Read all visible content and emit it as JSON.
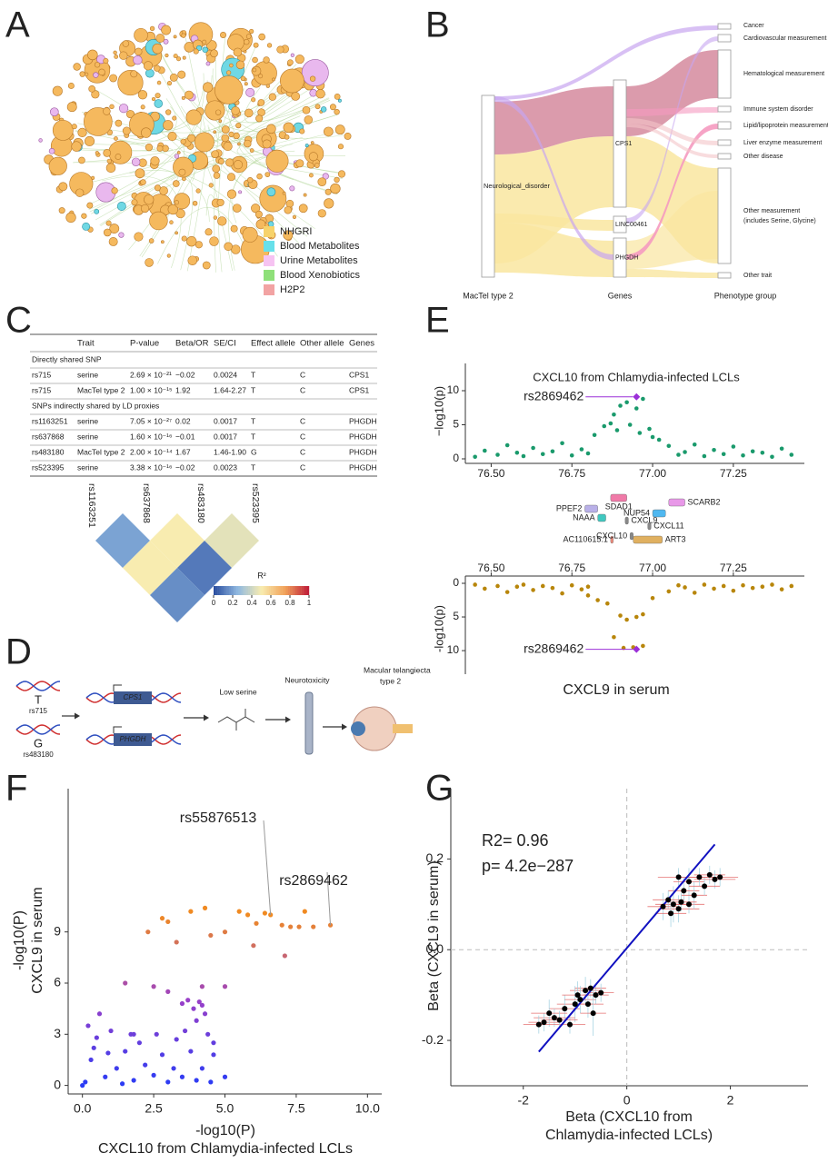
{
  "panel_labels": [
    "A",
    "B",
    "C",
    "D",
    "E",
    "F",
    "G"
  ],
  "network": {
    "legend": [
      {
        "name": "NHGRI",
        "color": "#f7d36b"
      },
      {
        "name": "Blood Metabolites",
        "color": "#67e0ea"
      },
      {
        "name": "Urine Metabolites",
        "color": "#f6c3f2"
      },
      {
        "name": "Blood Xenobiotics",
        "color": "#8fe07a"
      },
      {
        "name": "H2P2",
        "color": "#f2a3a3"
      }
    ]
  },
  "sankey": {
    "left_nodes": [
      "Neurological_disorder"
    ],
    "gene_nodes": [
      "CPS1",
      "LINC00461",
      "PHGDH"
    ],
    "phenotype_nodes": [
      "Cancer",
      "Cardiovascular measurement",
      "Hematological measurement",
      "Immune system disorder",
      "Lipid/lipoprotein measurement",
      "Liver enzyme measurement",
      "Other disease",
      "Other measurement",
      "(includes Serine, Glycine)",
      "Other trait"
    ],
    "axis_labels": [
      "MacTel type 2",
      "Genes",
      "Phenotype group"
    ]
  },
  "table": {
    "header": [
      "Trait",
      "P-value",
      "Beta/OR",
      "SE/CI",
      "Effect allele",
      "Other allele",
      "Genes"
    ],
    "sections": [
      {
        "title": "Directly shared SNP",
        "rows": [
          [
            "rs715",
            "serine",
            "2.69 × 10⁻²¹",
            "−0.02",
            "0.0024",
            "T",
            "C",
            "CPS1"
          ],
          [
            "rs715",
            "MacTel type 2",
            "1.00 × 10⁻¹⁵",
            "1.92",
            "1.64-2.27",
            "T",
            "C",
            "CPS1"
          ]
        ]
      },
      {
        "title": "SNPs indirectly shared by LD proxies",
        "rows": [
          [
            "rs1163251",
            "serine",
            "7.05 × 10⁻²⁷",
            "0.02",
            "0.0017",
            "T",
            "C",
            "PHGDH"
          ],
          [
            "rs637868",
            "serine",
            "1.60 × 10⁻¹⁶",
            "−0.01",
            "0.0017",
            "T",
            "C",
            "PHGDH"
          ],
          [
            "rs483180",
            "MacTel type 2",
            "2.00 × 10⁻¹⁴",
            "1.67",
            "1.46-1.90",
            "G",
            "C",
            "PHGDH"
          ],
          [
            "rs523395",
            "serine",
            "3.38 × 10⁻¹⁶",
            "−0.02",
            "0.0023",
            "T",
            "C",
            "PHGDH"
          ]
        ]
      }
    ]
  },
  "ld": {
    "type": "heatmap",
    "snps": [
      "rs1163251",
      "rs637868",
      "rs483180",
      "rs523395"
    ],
    "r2": [
      [
        0.2,
        0.5,
        0.45
      ],
      [
        0.5,
        0.1
      ],
      [
        0.15
      ]
    ],
    "legend_title": "R²",
    "ticks": [
      0,
      0.2,
      0.4,
      0.6,
      0.8,
      1
    ],
    "colors": [
      "#2c4fa0",
      "#8fb8e0",
      "#f8ecb0",
      "#f1a35a",
      "#c0203a"
    ]
  },
  "pathway": {
    "alleles": [
      {
        "allele": "T",
        "snp": "rs715"
      },
      {
        "allele": "G",
        "snp": "rs483180"
      }
    ],
    "genes": [
      "CPS1",
      "PHGDH"
    ],
    "steps": [
      "Low serine",
      "Neurotoxicity",
      "Macular telangiecta",
      "type 2"
    ]
  },
  "locus": {
    "type": "scatter",
    "xlim": [
      76.42,
      77.47
    ],
    "xticks": [
      {
        "value": 76.5,
        "label": "76.50"
      },
      {
        "value": 76.75,
        "label": "76.75"
      },
      {
        "value": 77,
        "label": "77.00"
      },
      {
        "value": 77.25,
        "label": "77.25"
      }
    ],
    "plots": [
      {
        "title": "CXCL10 from Chlamydia-infected LCLs",
        "ylabel": "−log10(p)",
        "color": "#1a9a6c",
        "ylim": [
          0,
          14
        ],
        "yticks": [
          0,
          5,
          10
        ],
        "x": [
          76.45,
          76.48,
          76.52,
          76.55,
          76.58,
          76.6,
          76.63,
          76.66,
          76.69,
          76.72,
          76.75,
          76.78,
          76.8,
          77.05,
          77.08,
          77.1,
          77.13,
          77.16,
          77.19,
          77.22,
          77.25,
          77.28,
          77.31,
          77.34,
          77.37,
          77.4,
          77.43,
          76.82,
          76.85,
          76.87,
          76.88,
          76.9,
          76.92,
          76.95,
          76.97,
          76.99,
          77.0,
          77.02,
          76.93,
          76.96,
          76.89
        ],
        "y": [
          0.3,
          1.2,
          0.6,
          2.0,
          0.9,
          0.4,
          1.6,
          0.7,
          1.1,
          2.3,
          0.5,
          1.4,
          0.8,
          1.9,
          0.6,
          1.0,
          2.1,
          0.4,
          1.3,
          0.7,
          1.8,
          0.5,
          1.1,
          0.9,
          0.3,
          1.5,
          0.6,
          3.5,
          4.8,
          5.2,
          6.5,
          7.8,
          8.3,
          7.4,
          8.8,
          4.4,
          3.2,
          2.8,
          5.0,
          3.8,
          4.2
        ],
        "lead": {
          "label": "rs2869462",
          "x": 76.95,
          "y": 9.1
        }
      },
      {
        "title": "CXCL9 in serum",
        "ylabel": "-log10(p)",
        "color": "#b8860b",
        "ylim": [
          0,
          13.5
        ],
        "yticks": [
          0,
          5,
          10
        ],
        "x": [
          76.45,
          76.48,
          76.52,
          76.55,
          76.58,
          76.6,
          76.63,
          76.66,
          76.69,
          76.72,
          76.75,
          76.78,
          76.8,
          77.05,
          77.08,
          77.1,
          77.13,
          77.16,
          77.19,
          77.22,
          77.25,
          77.28,
          77.31,
          77.34,
          77.37,
          77.4,
          77.43,
          76.83,
          76.86,
          76.9,
          76.92,
          76.95,
          76.97,
          76.88,
          76.91,
          76.94,
          76.97,
          77.0,
          76.8
        ],
        "y": [
          0.2,
          0.8,
          0.4,
          1.3,
          0.5,
          0.2,
          1.0,
          0.4,
          0.7,
          1.5,
          0.3,
          0.9,
          0.5,
          1.2,
          0.3,
          0.6,
          1.4,
          0.2,
          0.8,
          0.4,
          1.1,
          0.3,
          0.7,
          0.5,
          0.2,
          0.9,
          0.4,
          2.5,
          3.0,
          4.8,
          5.4,
          5.0,
          4.6,
          8.0,
          9.6,
          9.5,
          9.3,
          2.2,
          1.8
        ],
        "lead": {
          "label": "rs2869462",
          "x": 76.95,
          "y": 9.8
        }
      }
    ],
    "genes": [
      {
        "label": "PPEF2",
        "start": 76.79,
        "end": 76.83,
        "color": "#b9b0e8"
      },
      {
        "label": "SDAD1",
        "start": 76.87,
        "end": 76.92,
        "color": "#f07aa8"
      },
      {
        "label": "NAAA",
        "start": 76.83,
        "end": 76.855,
        "color": "#40c8c0"
      },
      {
        "label": "CXCL9",
        "start": 76.915,
        "end": 76.925,
        "color": "#888888"
      },
      {
        "label": "NUP54",
        "start": 77.0,
        "end": 77.04,
        "color": "#50b8f0"
      },
      {
        "label": "SCARB2",
        "start": 77.05,
        "end": 77.1,
        "color": "#e898e8"
      },
      {
        "label": "CXCL11",
        "start": 76.985,
        "end": 76.995,
        "color": "#888888"
      },
      {
        "label": "AC110615.1",
        "start": 76.87,
        "end": 76.878,
        "color": "#f08a7a"
      },
      {
        "label": "CXCL10",
        "start": 76.93,
        "end": 76.94,
        "color": "#888888"
      },
      {
        "label": "ART3",
        "start": 76.94,
        "end": 77.03,
        "color": "#e0b060"
      }
    ]
  },
  "scatter": {
    "type": "scatter",
    "xlabel": [
      "-log10(P)",
      "CXCL10 from Chlamydia-infected LCLs"
    ],
    "ylabel": [
      "-log10(P)",
      "CXCL9 in serum"
    ],
    "xlim": [
      -0.5,
      10.5
    ],
    "ylim": [
      -0.5,
      17.4
    ],
    "xticks": [
      {
        "value": 0,
        "label": "0.0"
      },
      {
        "value": 2.5,
        "label": "2.5"
      },
      {
        "value": 5,
        "label": "5.0"
      },
      {
        "value": 7.5,
        "label": "7.5"
      },
      {
        "value": 10,
        "label": "10.0"
      }
    ],
    "yticks": [
      0,
      3,
      6,
      9
    ],
    "colors": [
      "#2a3cf5",
      "#9a40c8",
      "#f08a22"
    ],
    "x": [
      0.1,
      0.3,
      0.5,
      0.8,
      1.0,
      1.2,
      1.5,
      1.8,
      2.0,
      2.2,
      2.5,
      2.8,
      3.0,
      3.2,
      3.5,
      3.8,
      4.0,
      4.5,
      0.2,
      0.6,
      0.4,
      1.4,
      2.6,
      0.9,
      3.3,
      4.2,
      1.7,
      0.0,
      5.0,
      4.6,
      3.5,
      3.7,
      3.9,
      4.1,
      4.3,
      3.6,
      4.4,
      4.6,
      4.0,
      1.8,
      2.5,
      1.5,
      3.0,
      4.2,
      3.0,
      3.3,
      3.8,
      4.3,
      4.5,
      5.0,
      5.5,
      5.0,
      4.2,
      5.8,
      6.1,
      6.4,
      6.6,
      7.0,
      7.1,
      7.3,
      7.6,
      7.8,
      8.1,
      8.7,
      6.0,
      2.8,
      2.3
    ],
    "y": [
      0.2,
      1.5,
      2.8,
      0.5,
      3.2,
      1.0,
      2.0,
      0.3,
      2.5,
      1.2,
      0.6,
      1.8,
      0.2,
      1.0,
      0.5,
      2.0,
      0.3,
      0.2,
      3.5,
      4.2,
      2.2,
      0.1,
      3.0,
      1.9,
      2.7,
      1.0,
      3.0,
      0.0,
      0.5,
      1.8,
      4.8,
      5.0,
      4.5,
      4.9,
      4.2,
      3.2,
      3.0,
      2.5,
      3.8,
      3.0,
      5.8,
      6.0,
      5.5,
      4.7,
      9.6,
      8.4,
      10.2,
      10.4,
      8.8,
      9.0,
      10.2,
      5.8,
      5.8,
      10.0,
      9.5,
      10.1,
      10.0,
      9.4,
      7.6,
      9.3,
      9.3,
      10.2,
      9.3,
      9.4,
      8.2,
      9.8,
      9.0
    ],
    "annotations": [
      {
        "label": "rs55876513",
        "x": 6.6,
        "y": 10.0
      },
      {
        "label": "rs2869462",
        "x": 8.7,
        "y": 9.4
      }
    ]
  },
  "regression": {
    "type": "scatter",
    "xlabel": [
      "Beta (CXCL10 from",
      "Chlamydia-infected LCLs)"
    ],
    "ylabel": "Beta (CXCL9 in serum)",
    "stats": [
      "R2= 0.96",
      "p= 4.2e−287"
    ],
    "xlim": [
      -3.4,
      3.5
    ],
    "ylim": [
      -0.3,
      0.355
    ],
    "xticks": [
      -2,
      0,
      2
    ],
    "yticks": [
      -0.2,
      {
        "value": 0,
        "label": "0.0"
      },
      0.2
    ],
    "hline": 0,
    "vline": 0,
    "point_color": "#000000",
    "xerr_color": "#e05050",
    "yerr_color": "#9fd0e0",
    "line_color": "#1010c0",
    "fit": {
      "x": [
        -1.7,
        1.7
      ],
      "y": [
        -0.225,
        0.232
      ]
    },
    "x": [
      1.0,
      1.2,
      1.4,
      1.6,
      1.7,
      1.1,
      0.9,
      1.0,
      0.8,
      1.2,
      1.3,
      0.7,
      1.5,
      1.05,
      0.85,
      1.8,
      -0.8,
      -0.6,
      -1.0,
      -1.2,
      -1.4,
      -1.6,
      -1.5,
      -0.7,
      -0.9,
      -0.5,
      -1.1,
      -0.75,
      -1.3,
      -0.65,
      -0.95,
      -1.7
    ],
    "y": [
      0.16,
      0.15,
      0.16,
      0.165,
      0.155,
      0.13,
      0.1,
      0.09,
      0.11,
      0.1,
      0.12,
      0.095,
      0.14,
      0.105,
      0.08,
      0.16,
      -0.09,
      -0.1,
      -0.12,
      -0.13,
      -0.15,
      -0.16,
      -0.14,
      -0.085,
      -0.11,
      -0.095,
      -0.165,
      -0.12,
      -0.155,
      -0.14,
      -0.1,
      -0.165
    ],
    "xerr": [
      0.4,
      0.3,
      0.35,
      0.3,
      0.4,
      0.3,
      0.35,
      0.4,
      0.3,
      0.3,
      0.25,
      0.3,
      0.3,
      0.3,
      0.3,
      0.35,
      0.3,
      0.25,
      0.35,
      0.3,
      0.4,
      0.3,
      0.35,
      0.3,
      0.3,
      0.25,
      0.3,
      0.3,
      0.35,
      0.25,
      0.3,
      0.3
    ],
    "yerr": [
      0.02,
      0.03,
      0.02,
      0.02,
      0.02,
      0.03,
      0.04,
      0.03,
      0.02,
      0.02,
      0.03,
      0.03,
      0.02,
      0.02,
      0.03,
      0.02,
      0.03,
      0.02,
      0.04,
      0.03,
      0.02,
      0.02,
      0.03,
      0.02,
      0.03,
      0.02,
      0.02,
      0.03,
      0.02,
      0.05,
      0.03,
      0.02
    ]
  }
}
